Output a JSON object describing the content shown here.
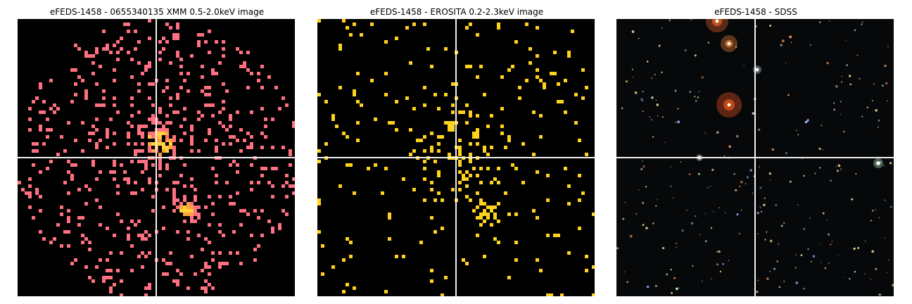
{
  "panels": [
    {
      "title": "eFEDS-1458 - 0655340135 XMM 0.5-2.0keV image",
      "kind": "xmm",
      "color": "#ff7080",
      "hot": "#ffd23c"
    },
    {
      "title": "eFEDS-1458 -  EROSITA 0.2-2.3keV image",
      "kind": "erosita",
      "color": "#ffd21e",
      "hot": "#ffe040"
    },
    {
      "title": "eFEDS-1458 - SDSS",
      "kind": "sdss"
    }
  ]
}
